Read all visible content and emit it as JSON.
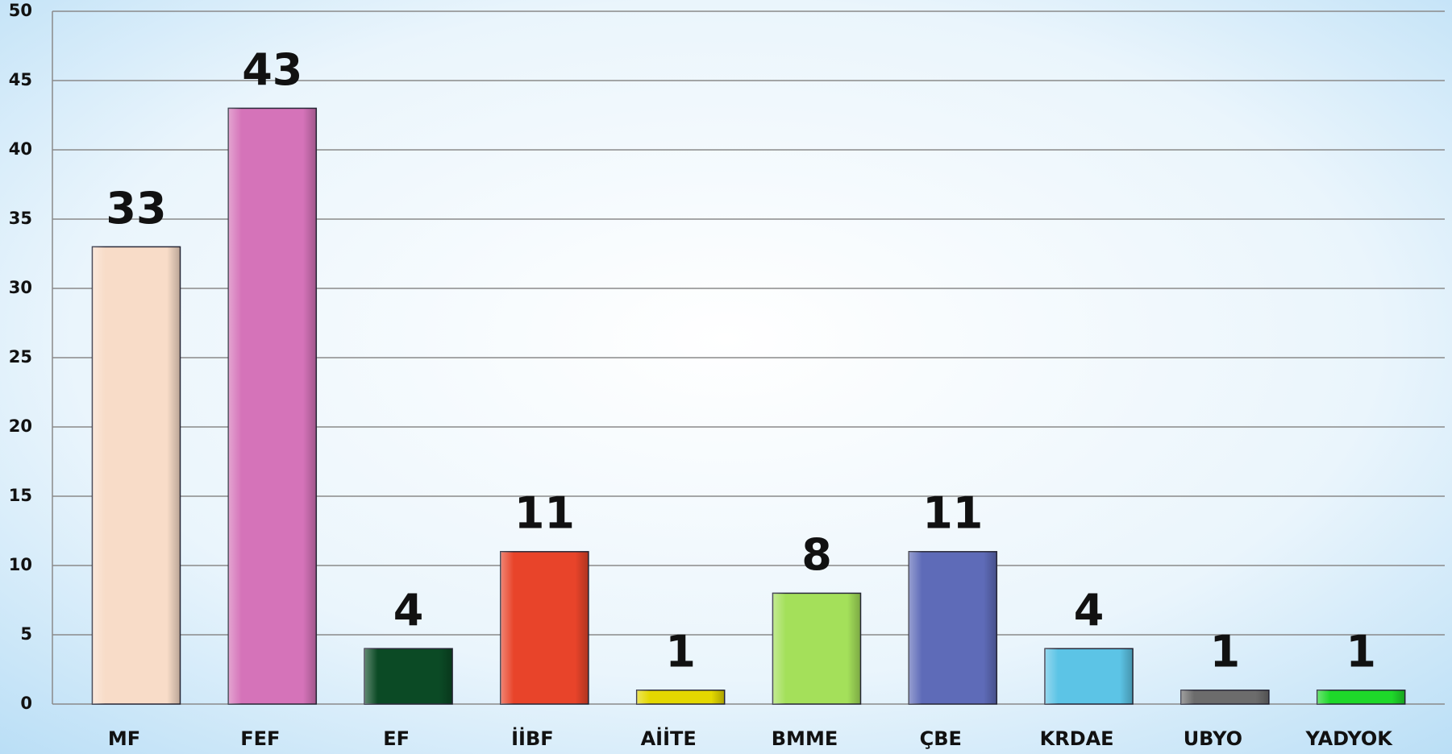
{
  "chart_data": {
    "type": "bar",
    "categories": [
      "MF",
      "FEF",
      "EF",
      "İİBF",
      "AİİTE",
      "BMME",
      "ÇBE",
      "KRDAE",
      "UBYO",
      "YADYOK"
    ],
    "values": [
      33,
      43,
      4,
      11,
      1,
      8,
      11,
      4,
      1,
      1
    ],
    "colors": [
      "#f8dcc8",
      "#d573b9",
      "#0b4a25",
      "#e8442a",
      "#e4d800",
      "#a4e05a",
      "#5e6bb8",
      "#5cc4e6",
      "#6c6c6c",
      "#1ed82a"
    ],
    "ylim": [
      0,
      50
    ],
    "yticks": [
      0,
      5,
      10,
      15,
      20,
      25,
      30,
      35,
      40,
      45,
      50
    ],
    "grid": true
  }
}
